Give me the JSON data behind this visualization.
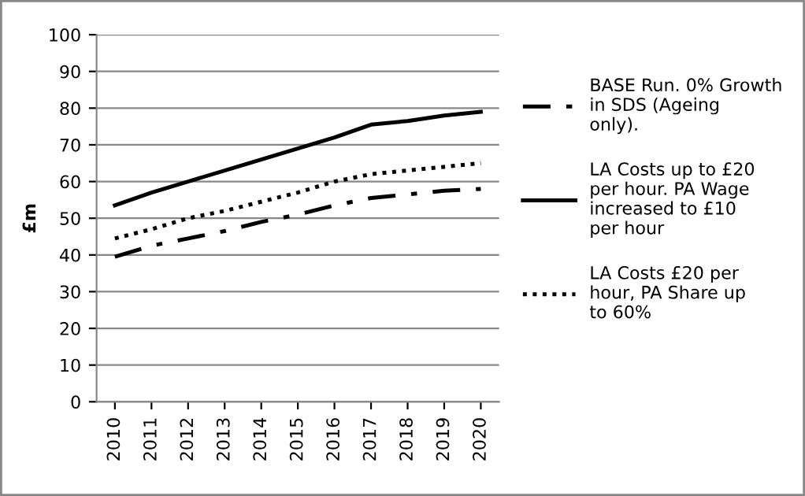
{
  "chart_data": {
    "type": "line",
    "ylabel": "£m",
    "categories": [
      "2010",
      "2011",
      "2012",
      "2013",
      "2014",
      "2015",
      "2016",
      "2017",
      "2018",
      "2019",
      "2020"
    ],
    "series": [
      {
        "name": "BASE Run. 0% Growth in SDS (Ageing only).",
        "color": "#000000",
        "line_style": "dashdot",
        "values": [
          39.5,
          42.5,
          44.5,
          46.5,
          49,
          51,
          53.5,
          55.5,
          56.5,
          57.5,
          58
        ]
      },
      {
        "name": "LA Costs up to £20 per hour. PA Wage increased to £10 per hour",
        "color": "#000000",
        "line_style": "solid",
        "values": [
          53.5,
          57,
          60,
          63,
          66,
          69,
          72,
          75.5,
          76.5,
          78,
          79
        ]
      },
      {
        "name": "LA Costs £20 per hour, PA Share up to 60%",
        "color": "#000000",
        "line_style": "dotted",
        "values": [
          44.5,
          47,
          50,
          52,
          54.5,
          57,
          60,
          62,
          63,
          64,
          65
        ]
      }
    ],
    "ylim": [
      0,
      100
    ],
    "yticks": [
      0,
      10,
      20,
      30,
      40,
      50,
      60,
      70,
      80,
      90,
      100
    ],
    "grid": "y",
    "legend": "right",
    "marker": "none"
  }
}
